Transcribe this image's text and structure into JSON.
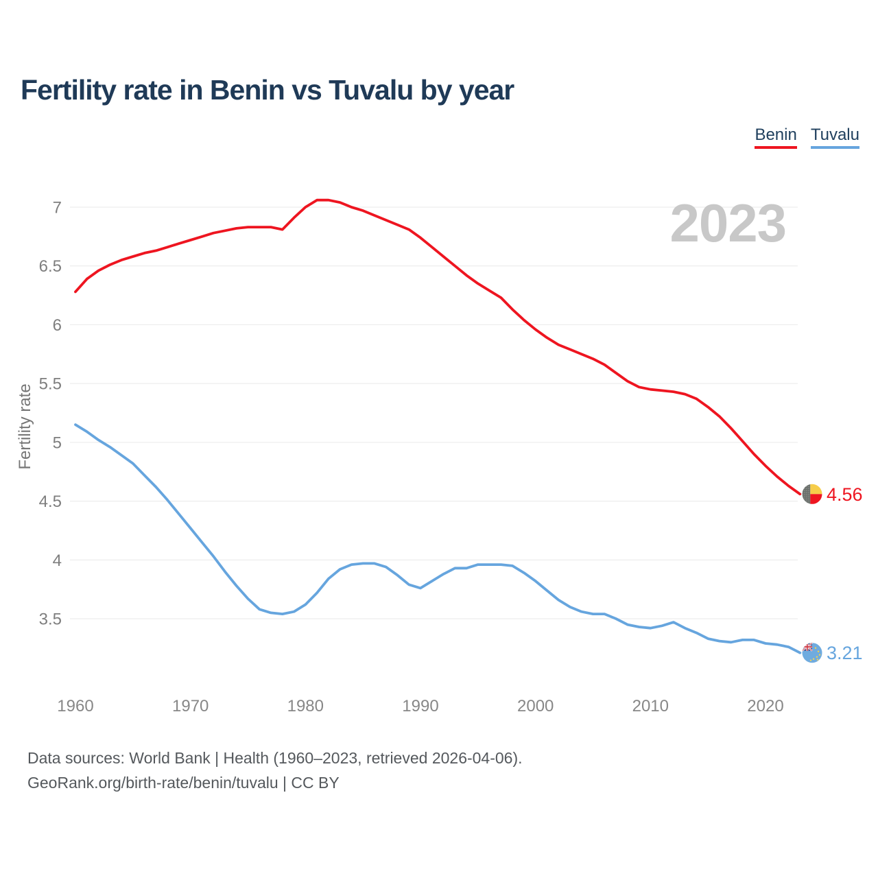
{
  "title": "Fertility rate in Benin vs Tuvalu by year",
  "watermark": "2023",
  "legend": {
    "items": [
      "Benin",
      "Tuvalu"
    ]
  },
  "footer": {
    "line1": "Data sources: World Bank | Health (1960–2023, retrieved 2026-04-06).",
    "line2": "GeoRank.org/birth-rate/benin/tuvalu | CC BY"
  },
  "chart_data": {
    "type": "line",
    "title": "Fertility rate in Benin vs Tuvalu by year",
    "xlabel": "",
    "ylabel": "Fertility rate",
    "grid": true,
    "legend_position": "top-right",
    "ylim": [
      3.1,
      7.15
    ],
    "xlim": [
      1958.5,
      2024
    ],
    "yticks": [
      3.5,
      4,
      4.5,
      5,
      5.5,
      6,
      6.5,
      7
    ],
    "xticks": [
      1960,
      1970,
      1980,
      1990,
      2000,
      2010,
      2020
    ],
    "x": [
      1960,
      1961,
      1962,
      1963,
      1964,
      1965,
      1966,
      1967,
      1968,
      1969,
      1970,
      1971,
      1972,
      1973,
      1974,
      1975,
      1976,
      1977,
      1978,
      1979,
      1980,
      1981,
      1982,
      1983,
      1984,
      1985,
      1986,
      1987,
      1988,
      1989,
      1990,
      1991,
      1992,
      1993,
      1994,
      1995,
      1996,
      1997,
      1998,
      1999,
      2000,
      2001,
      2002,
      2003,
      2004,
      2005,
      2006,
      2007,
      2008,
      2009,
      2010,
      2011,
      2012,
      2013,
      2014,
      2015,
      2016,
      2017,
      2018,
      2019,
      2020,
      2021,
      2022,
      2023
    ],
    "series": [
      {
        "id": "benin",
        "name": "Benin",
        "color": "#ee1520",
        "end_label": "4.56",
        "values": [
          6.28,
          6.39,
          6.46,
          6.51,
          6.55,
          6.58,
          6.61,
          6.63,
          6.66,
          6.69,
          6.72,
          6.75,
          6.78,
          6.8,
          6.82,
          6.83,
          6.83,
          6.83,
          6.81,
          6.91,
          7.0,
          7.06,
          7.06,
          7.04,
          7.0,
          6.97,
          6.93,
          6.89,
          6.85,
          6.81,
          6.74,
          6.66,
          6.58,
          6.5,
          6.42,
          6.35,
          6.29,
          6.23,
          6.13,
          6.04,
          5.96,
          5.89,
          5.83,
          5.79,
          5.75,
          5.71,
          5.66,
          5.59,
          5.52,
          5.47,
          5.45,
          5.44,
          5.43,
          5.41,
          5.37,
          5.3,
          5.22,
          5.12,
          5.01,
          4.9,
          4.8,
          4.71,
          4.63,
          4.56
        ]
      },
      {
        "id": "tuvalu",
        "name": "Tuvalu",
        "color": "#66a5de",
        "end_label": "3.21",
        "values": [
          5.15,
          5.09,
          5.02,
          4.96,
          4.89,
          4.82,
          4.72,
          4.62,
          4.51,
          4.39,
          4.27,
          4.15,
          4.03,
          3.9,
          3.78,
          3.67,
          3.58,
          3.55,
          3.54,
          3.56,
          3.62,
          3.72,
          3.84,
          3.92,
          3.96,
          3.97,
          3.97,
          3.94,
          3.87,
          3.79,
          3.76,
          3.82,
          3.88,
          3.93,
          3.93,
          3.96,
          3.96,
          3.96,
          3.95,
          3.89,
          3.82,
          3.74,
          3.66,
          3.6,
          3.56,
          3.54,
          3.54,
          3.5,
          3.45,
          3.43,
          3.42,
          3.44,
          3.47,
          3.42,
          3.38,
          3.33,
          3.31,
          3.3,
          3.32,
          3.32,
          3.29,
          3.28,
          3.26,
          3.21
        ]
      }
    ]
  }
}
